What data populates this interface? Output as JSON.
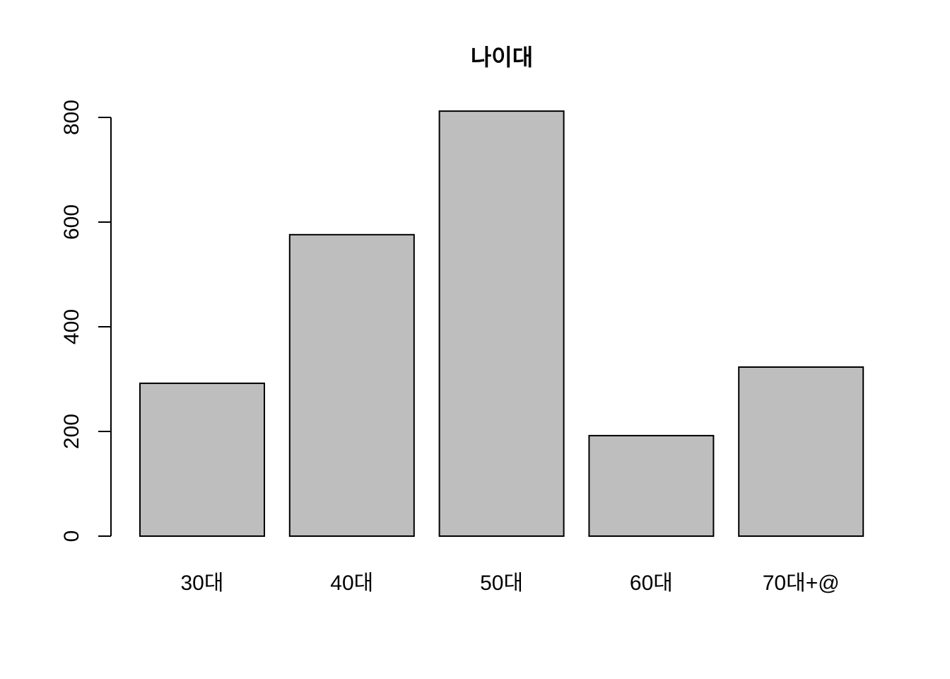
{
  "chart_data": {
    "type": "bar",
    "title": "나이대",
    "xlabel": "",
    "ylabel": "",
    "categories": [
      "30대",
      "40대",
      "50대",
      "60대",
      "70대+@"
    ],
    "values": [
      292,
      576,
      812,
      192,
      323
    ],
    "ylim": [
      0,
      800
    ],
    "yticks": [
      "0",
      "200",
      "400",
      "600",
      "800"
    ],
    "grid": false,
    "legend": "none",
    "bar_color": "#BEBEBE",
    "edge_color": "#000000"
  }
}
